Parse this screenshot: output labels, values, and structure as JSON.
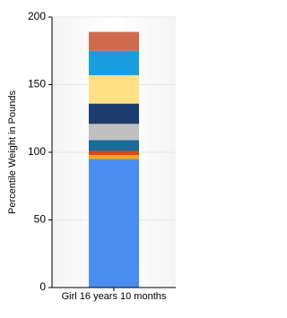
{
  "chart_data": {
    "type": "stacked-bar",
    "y_label": "Percentile Weight in Pounds",
    "categories": [
      "Girl 16 years 10 months"
    ],
    "series": [
      {
        "color": "#4a8ef0",
        "values": [
          95
        ]
      },
      {
        "color": "#f5a623",
        "values": [
          3
        ]
      },
      {
        "color": "#e0431f",
        "values": [
          3
        ]
      },
      {
        "color": "#1a6a9a",
        "values": [
          8
        ]
      },
      {
        "color": "#c0c0c0",
        "values": [
          12
        ]
      },
      {
        "color": "#1c3d6e",
        "values": [
          15
        ]
      },
      {
        "color": "#ffe082",
        "values": [
          21
        ]
      },
      {
        "color": "#189ee0",
        "values": [
          18
        ]
      },
      {
        "color": "#cf6b4c",
        "values": [
          14
        ]
      }
    ],
    "ylim": [
      0,
      200
    ],
    "yticks": [
      0,
      50,
      100,
      150,
      200
    ],
    "grid": true
  }
}
